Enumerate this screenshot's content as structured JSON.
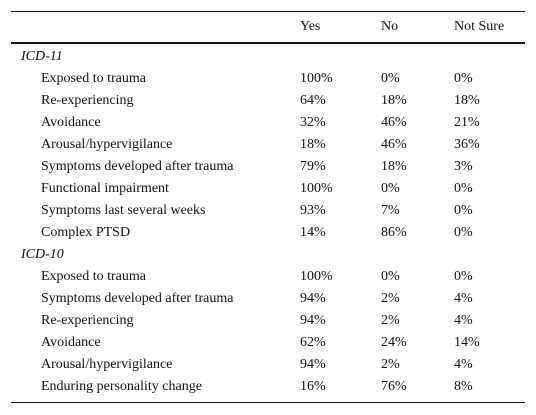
{
  "table": {
    "headers": [
      "Yes",
      "No",
      "Not Sure"
    ],
    "sections": [
      {
        "title": "ICD-11",
        "rows": [
          {
            "label": "Exposed to trauma",
            "yes": "100%",
            "no": "0%",
            "not_sure": "0%"
          },
          {
            "label": "Re-experiencing",
            "yes": "64%",
            "no": "18%",
            "not_sure": "18%"
          },
          {
            "label": "Avoidance",
            "yes": "32%",
            "no": "46%",
            "not_sure": "21%"
          },
          {
            "label": "Arousal/hypervigilance",
            "yes": "18%",
            "no": "46%",
            "not_sure": "36%"
          },
          {
            "label": "Symptoms developed after trauma",
            "yes": "79%",
            "no": "18%",
            "not_sure": "3%"
          },
          {
            "label": "Functional impairment",
            "yes": "100%",
            "no": "0%",
            "not_sure": "0%"
          },
          {
            "label": "Symptoms last several weeks",
            "yes": "93%",
            "no": "7%",
            "not_sure": "0%"
          },
          {
            "label": "Complex PTSD",
            "yes": "14%",
            "no": "86%",
            "not_sure": "0%"
          }
        ]
      },
      {
        "title": "ICD-10",
        "rows": [
          {
            "label": "Exposed to trauma",
            "yes": "100%",
            "no": "0%",
            "not_sure": "0%"
          },
          {
            "label": "Symptoms developed after trauma",
            "yes": "94%",
            "no": "2%",
            "not_sure": "4%"
          },
          {
            "label": "Re-experiencing",
            "yes": "94%",
            "no": "2%",
            "not_sure": "4%"
          },
          {
            "label": "Avoidance",
            "yes": "62%",
            "no": "24%",
            "not_sure": "14%"
          },
          {
            "label": "Arousal/hypervigilance",
            "yes": "94%",
            "no": "2%",
            "not_sure": "4%"
          },
          {
            "label": "Enduring personality change",
            "yes": "16%",
            "no": "76%",
            "not_sure": "8%"
          }
        ]
      }
    ]
  }
}
